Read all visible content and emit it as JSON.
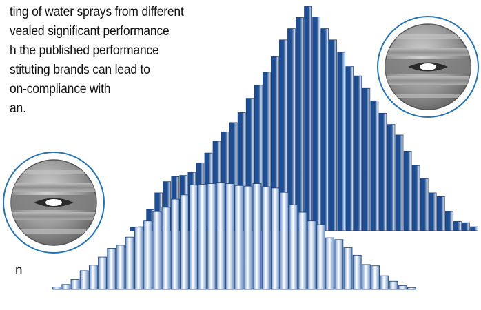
{
  "text_lines": [
    "ting of water sprays from different",
    "vealed significant performance",
    "h the published performance",
    "stituting brands can lead to",
    "on-compliance with",
    "an."
  ],
  "stray_text": "n",
  "colors": {
    "back_dark": "#1e4e91",
    "back_light": "#ffffff",
    "front_blue": "#6d95c9",
    "front_light": "#ffffff",
    "outline": "#1b3f78",
    "circle_ring": "#2672b0",
    "text": "#111111"
  },
  "icons": {
    "nozzle_top": "spray-nozzle-flat-fan-icon",
    "nozzle_bottom": "spray-nozzle-flat-fan-icon"
  },
  "chart_data": [
    {
      "type": "bar",
      "name": "",
      "values": [
        0.6,
        0.65,
        3.4,
        6.1,
        7.9,
        8.7,
        8.9,
        9.4,
        10.9,
        12.5,
        14.4,
        15.9,
        17.4,
        19.0,
        21.3,
        23.4,
        25.5,
        28.0,
        30.7,
        32.5,
        34.3,
        36.1,
        34.4,
        32.5,
        30.7,
        28.7,
        26.4,
        24.9,
        22.9,
        20.9,
        18.9,
        17.1,
        15.4,
        12.8,
        10.5,
        8.4,
        6.1,
        5.5,
        3.1,
        1.5,
        1.3,
        0.65
      ],
      "ylim": [
        0,
        36
      ]
    },
    {
      "type": "bar",
      "name": "",
      "values": [
        0.4,
        0.8,
        1.6,
        3.0,
        3.9,
        5.2,
        6.6,
        7.1,
        8.4,
        10.0,
        11.0,
        12.5,
        13.2,
        14.5,
        15.2,
        16.8,
        16.9,
        17.0,
        17.2,
        17.0,
        16.7,
        16.6,
        17.0,
        16.5,
        16.3,
        15.6,
        13.6,
        12.4,
        11.0,
        10.4,
        8.3,
        8.0,
        6.7,
        5.5,
        4.0,
        3.8,
        2.2,
        1.3,
        0.6,
        0.3
      ],
      "ylim": [
        0,
        36
      ]
    }
  ]
}
